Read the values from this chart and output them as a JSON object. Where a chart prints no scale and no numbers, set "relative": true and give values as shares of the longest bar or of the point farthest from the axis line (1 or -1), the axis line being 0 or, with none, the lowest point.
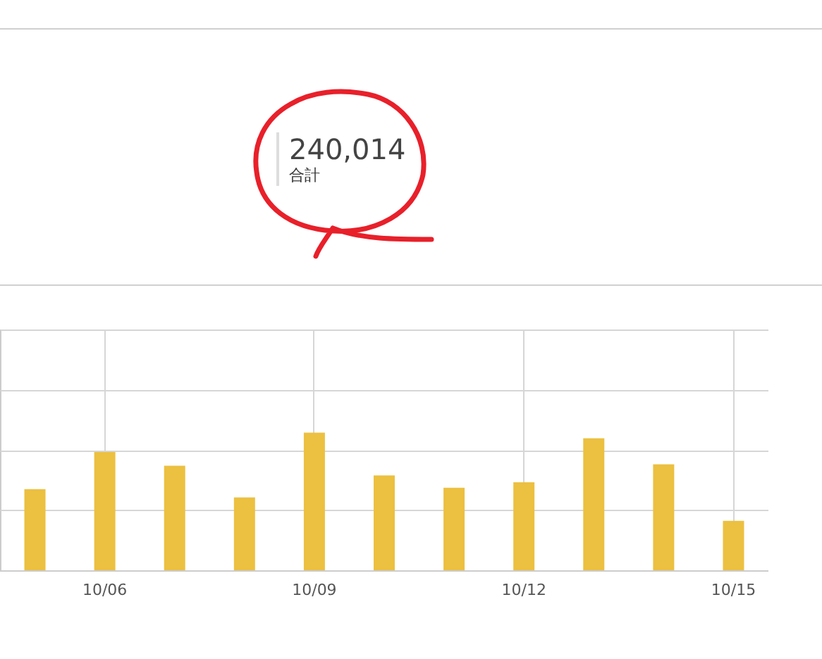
{
  "chart_data": {
    "type": "bar",
    "relative": true,
    "categories": [
      null,
      "10/06",
      null,
      null,
      "10/09",
      null,
      null,
      "10/12",
      null,
      null,
      "10/15"
    ],
    "values": [
      0.59,
      0.86,
      0.76,
      0.53,
      1,
      0.69,
      0.6,
      0.64,
      0.96,
      0.77,
      0.36
    ],
    "color": "#ecc040",
    "grid": true,
    "annotations": [
      "240,014",
      "合計"
    ]
  }
}
